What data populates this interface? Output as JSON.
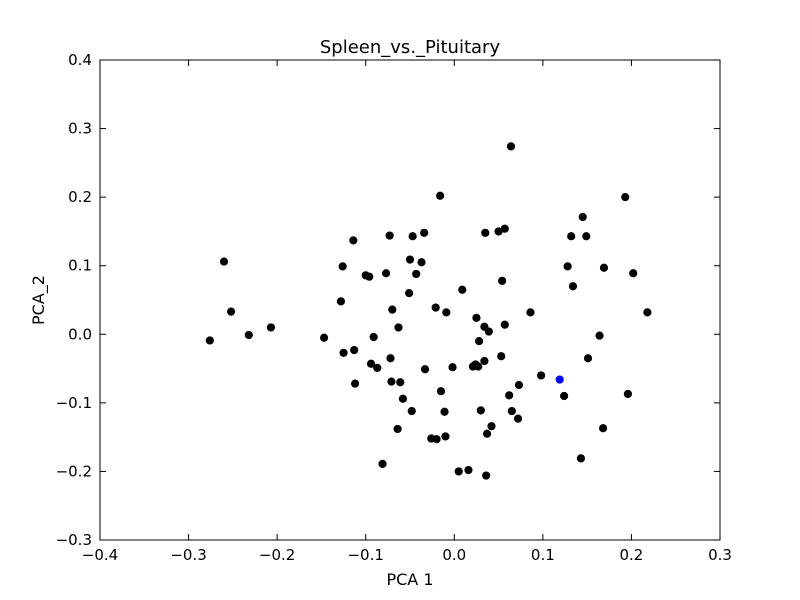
{
  "chart_data": {
    "type": "scatter",
    "title": "Spleen_vs._Pituitary",
    "xlabel": "PCA 1",
    "ylabel": "PCA_2",
    "xlim": [
      -0.4,
      0.3
    ],
    "ylim": [
      -0.3,
      0.4
    ],
    "xticks": [
      "−0.4",
      "−0.3",
      "−0.2",
      "−0.1",
      "0.0",
      "0.1",
      "0.2",
      "0.3"
    ],
    "yticks": [
      "−0.3",
      "−0.2",
      "−0.1",
      "0.0",
      "0.1",
      "0.2",
      "0.3",
      "0.4"
    ],
    "grid": false,
    "series": [
      {
        "color": "#000000",
        "points": [
          [
            -0.276,
            -0.009
          ],
          [
            -0.26,
            0.106
          ],
          [
            -0.252,
            0.033
          ],
          [
            -0.232,
            -0.001
          ],
          [
            -0.207,
            0.01
          ],
          [
            -0.147,
            -0.005
          ],
          [
            -0.128,
            0.048
          ],
          [
            -0.126,
            0.099
          ],
          [
            -0.125,
            -0.027
          ],
          [
            -0.114,
            0.137
          ],
          [
            -0.113,
            -0.023
          ],
          [
            -0.112,
            -0.072
          ],
          [
            -0.1,
            0.086
          ],
          [
            -0.096,
            0.084
          ],
          [
            -0.094,
            -0.043
          ],
          [
            -0.091,
            -0.004
          ],
          [
            -0.087,
            -0.049
          ],
          [
            -0.081,
            -0.189
          ],
          [
            -0.077,
            0.089
          ],
          [
            -0.073,
            0.144
          ],
          [
            -0.072,
            -0.035
          ],
          [
            -0.071,
            -0.069
          ],
          [
            -0.07,
            0.036
          ],
          [
            -0.064,
            -0.138
          ],
          [
            -0.063,
            0.01
          ],
          [
            -0.061,
            -0.07
          ],
          [
            -0.058,
            -0.094
          ],
          [
            -0.051,
            0.06
          ],
          [
            -0.05,
            0.109
          ],
          [
            -0.048,
            -0.112
          ],
          [
            -0.047,
            0.143
          ],
          [
            -0.043,
            0.088
          ],
          [
            -0.037,
            0.105
          ],
          [
            -0.034,
            0.148
          ],
          [
            -0.033,
            -0.051
          ],
          [
            -0.026,
            -0.152
          ],
          [
            -0.021,
            0.039
          ],
          [
            -0.02,
            -0.153
          ],
          [
            -0.016,
            0.202
          ],
          [
            -0.015,
            -0.083
          ],
          [
            -0.011,
            -0.113
          ],
          [
            -0.01,
            -0.149
          ],
          [
            -0.009,
            0.032
          ],
          [
            -0.002,
            -0.048
          ],
          [
            0.005,
            -0.2
          ],
          [
            0.009,
            0.065
          ],
          [
            0.016,
            -0.198
          ],
          [
            0.021,
            -0.047
          ],
          [
            0.024,
            -0.044
          ],
          [
            0.025,
            0.024
          ],
          [
            0.027,
            -0.047
          ],
          [
            0.028,
            -0.01
          ],
          [
            0.03,
            -0.111
          ],
          [
            0.034,
            -0.039
          ],
          [
            0.034,
            0.011
          ],
          [
            0.035,
            0.148
          ],
          [
            0.036,
            -0.206
          ],
          [
            0.037,
            -0.145
          ],
          [
            0.039,
            0.004
          ],
          [
            0.042,
            -0.134
          ],
          [
            0.05,
            0.15
          ],
          [
            0.053,
            -0.032
          ],
          [
            0.054,
            0.078
          ],
          [
            0.057,
            0.154
          ],
          [
            0.057,
            0.014
          ],
          [
            0.062,
            -0.089
          ],
          [
            0.064,
            0.274
          ],
          [
            0.065,
            -0.112
          ],
          [
            0.072,
            -0.123
          ],
          [
            0.073,
            -0.074
          ],
          [
            0.086,
            0.032
          ],
          [
            0.098,
            -0.06
          ],
          [
            0.124,
            -0.09
          ],
          [
            0.128,
            0.099
          ],
          [
            0.132,
            0.143
          ],
          [
            0.134,
            0.07
          ],
          [
            0.143,
            -0.181
          ],
          [
            0.145,
            0.171
          ],
          [
            0.149,
            0.143
          ],
          [
            0.151,
            -0.035
          ],
          [
            0.164,
            -0.002
          ],
          [
            0.168,
            -0.137
          ],
          [
            0.169,
            0.097
          ],
          [
            0.193,
            0.2
          ],
          [
            0.196,
            -0.087
          ],
          [
            0.202,
            0.089
          ],
          [
            0.218,
            0.032
          ]
        ]
      },
      {
        "color": "#0000ff",
        "points": [
          [
            0.119,
            -0.066
          ]
        ]
      }
    ]
  }
}
